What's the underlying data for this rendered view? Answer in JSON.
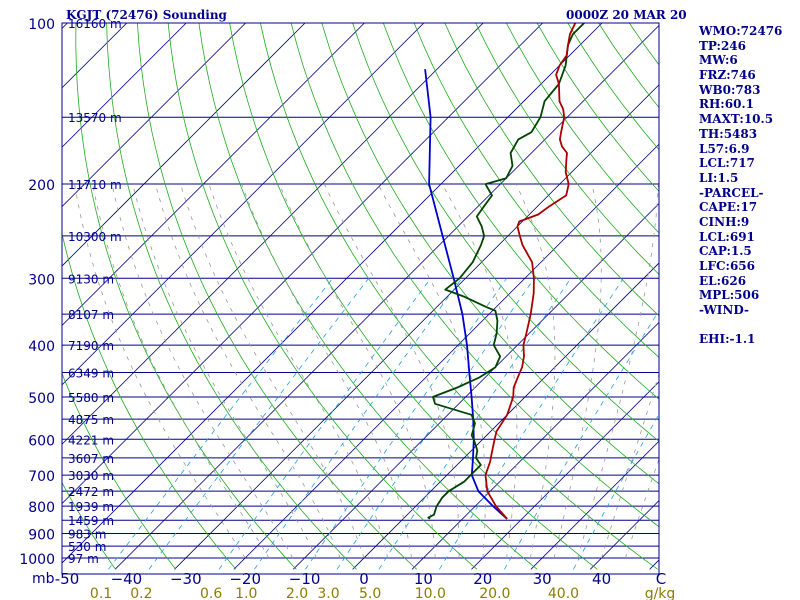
{
  "header": {
    "station": "KGJT (72476) Sounding",
    "time": "0000Z 20 MAR 20"
  },
  "stats": [
    "WMO:72476",
    "TP:246",
    "MW:6",
    "FRZ:746",
    "WB0:783",
    "RH:60.1",
    "MAXT:10.5",
    "TH:5483",
    "L57:6.9",
    "LCL:717",
    "LI:1.5",
    "-PARCEL-",
    "CAPE:17",
    "CINH:9",
    "LCL:691",
    "CAP:1.5",
    "LFC:656",
    "EL:626",
    "MPL:506",
    "-WIND-",
    "",
    "EHI:-1.1"
  ],
  "colors": {
    "isobar": "#00008b",
    "isotherm": "#00008b",
    "dry_adiabat": "#22aa22",
    "moist_adiabat": "#999999",
    "mixing_ratio": "#20a0e0",
    "temperature": "#aa0000",
    "dewpoint": "#004400",
    "parcel": "#0000cc",
    "mixing_labels": "#8b7d00"
  },
  "chart_data": {
    "type": "line",
    "diagram": "skew-T log-P",
    "pressure_levels": [
      {
        "p": 100,
        "label": "100"
      },
      {
        "p": 200,
        "label": "200"
      },
      {
        "p": 300,
        "label": "300"
      },
      {
        "p": 400,
        "label": "400"
      },
      {
        "p": 500,
        "label": "500"
      },
      {
        "p": 600,
        "label": "600"
      },
      {
        "p": 700,
        "label": "700"
      },
      {
        "p": 800,
        "label": "800"
      },
      {
        "p": 900,
        "label": "900"
      },
      {
        "p": 1000,
        "label": "1000"
      }
    ],
    "pressure_unit": "mb",
    "height_levels": [
      {
        "p": 100,
        "label": "16160 m"
      },
      {
        "p": 150,
        "label": "13570 m"
      },
      {
        "p": 200,
        "label": "11710 m"
      },
      {
        "p": 250,
        "label": "10300 m"
      },
      {
        "p": 300,
        "label": "9130 m"
      },
      {
        "p": 350,
        "label": "8107 m"
      },
      {
        "p": 400,
        "label": "7190 m"
      },
      {
        "p": 450,
        "label": "6349 m"
      },
      {
        "p": 500,
        "label": "5580 m"
      },
      {
        "p": 550,
        "label": "4875 m"
      },
      {
        "p": 600,
        "label": "4221 m"
      },
      {
        "p": 650,
        "label": "3607 m"
      },
      {
        "p": 700,
        "label": "3030 m"
      },
      {
        "p": 750,
        "label": "2472 m"
      },
      {
        "p": 800,
        "label": "1939 m"
      },
      {
        "p": 850,
        "label": "1459 m"
      },
      {
        "p": 900,
        "label": "983 m"
      },
      {
        "p": 950,
        "label": "530 m"
      },
      {
        "p": 1000,
        "label": "97 m"
      }
    ],
    "temperature_ticks": [
      {
        "t": -50,
        "label": "-50"
      },
      {
        "t": -40,
        "label": "−40"
      },
      {
        "t": -30,
        "label": "−30"
      },
      {
        "t": -20,
        "label": "−20"
      },
      {
        "t": -10,
        "label": "−10"
      },
      {
        "t": 0,
        "label": "0"
      },
      {
        "t": 10,
        "label": "10"
      },
      {
        "t": 20,
        "label": "20"
      },
      {
        "t": 30,
        "label": "30"
      },
      {
        "t": 40,
        "label": "40"
      },
      {
        "t": 50,
        "label": "C"
      }
    ],
    "mixing_ratio_ticks": [
      {
        "w": 0.1,
        "label": "0.1"
      },
      {
        "w": 0.2,
        "label": "0.2"
      },
      {
        "w": 0.6,
        "label": "0.6"
      },
      {
        "w": 1.0,
        "label": "1.0"
      },
      {
        "w": 2.0,
        "label": "2.0"
      },
      {
        "w": 3.0,
        "label": "3.0"
      },
      {
        "w": 5.0,
        "label": "5.0"
      },
      {
        "w": 10.0,
        "label": "10.0"
      },
      {
        "w": 20.0,
        "label": "20.0"
      },
      {
        "w": 40.0,
        "label": "40.0"
      },
      {
        "w": 0,
        "label": "g/kg"
      }
    ],
    "temperature_profile": [
      [
        845,
        17.5
      ],
      [
        800,
        13.5
      ],
      [
        750,
        9.5
      ],
      [
        700,
        6.5
      ],
      [
        660,
        5.0
      ],
      [
        640,
        4.0
      ],
      [
        600,
        2.0
      ],
      [
        580,
        1.0
      ],
      [
        560,
        0.5
      ],
      [
        540,
        0.0
      ],
      [
        500,
        -2.0
      ],
      [
        480,
        -3.5
      ],
      [
        460,
        -4.5
      ],
      [
        440,
        -5.5
      ],
      [
        420,
        -7.0
      ],
      [
        400,
        -9.0
      ],
      [
        380,
        -10.5
      ],
      [
        350,
        -13.0
      ],
      [
        320,
        -16.0
      ],
      [
        300,
        -18.5
      ],
      [
        280,
        -21.5
      ],
      [
        260,
        -26.0
      ],
      [
        250,
        -28.0
      ],
      [
        240,
        -30.0
      ],
      [
        235,
        -30.5
      ],
      [
        228,
        -28.5
      ],
      [
        220,
        -28.0
      ],
      [
        210,
        -27.0
      ],
      [
        200,
        -28.5
      ],
      [
        190,
        -31.0
      ],
      [
        180,
        -33.0
      ],
      [
        175,
        -34.0
      ],
      [
        170,
        -36.0
      ],
      [
        165,
        -37.5
      ],
      [
        160,
        -38.5
      ],
      [
        150,
        -40.5
      ],
      [
        145,
        -42.0
      ],
      [
        140,
        -44.0
      ],
      [
        130,
        -47.0
      ],
      [
        125,
        -49.0
      ],
      [
        120,
        -50.0
      ],
      [
        115,
        -50.5
      ],
      [
        110,
        -52.0
      ],
      [
        105,
        -53.5
      ],
      [
        100,
        -54.5
      ]
    ],
    "dewpoint_profile": [
      [
        845,
        4.5
      ],
      [
        840,
        4.0
      ],
      [
        830,
        4.5
      ],
      [
        800,
        3.5
      ],
      [
        770,
        3.0
      ],
      [
        750,
        3.0
      ],
      [
        720,
        4.0
      ],
      [
        700,
        4.0
      ],
      [
        670,
        4.0
      ],
      [
        650,
        2.0
      ],
      [
        630,
        1.0
      ],
      [
        600,
        -1.5
      ],
      [
        590,
        -2.5
      ],
      [
        560,
        -4.0
      ],
      [
        540,
        -6.0
      ],
      [
        515,
        -14.0
      ],
      [
        500,
        -15.5
      ],
      [
        480,
        -13.0
      ],
      [
        460,
        -11.0
      ],
      [
        440,
        -10.0
      ],
      [
        420,
        -11.0
      ],
      [
        400,
        -14.0
      ],
      [
        380,
        -15.5
      ],
      [
        360,
        -17.5
      ],
      [
        345,
        -19.5
      ],
      [
        340,
        -21.5
      ],
      [
        325,
        -27.0
      ],
      [
        315,
        -31.5
      ],
      [
        300,
        -31.0
      ],
      [
        280,
        -31.5
      ],
      [
        260,
        -33.0
      ],
      [
        250,
        -34.0
      ],
      [
        240,
        -36.0
      ],
      [
        230,
        -38.5
      ],
      [
        220,
        -39.0
      ],
      [
        210,
        -39.5
      ],
      [
        205,
        -41.0
      ],
      [
        200,
        -42.5
      ],
      [
        195,
        -40.0
      ],
      [
        185,
        -41.0
      ],
      [
        175,
        -43.5
      ],
      [
        165,
        -44.5
      ],
      [
        160,
        -43.5
      ],
      [
        150,
        -44.5
      ],
      [
        140,
        -46.5
      ],
      [
        130,
        -47.0
      ],
      [
        120,
        -49.0
      ],
      [
        110,
        -52.0
      ],
      [
        105,
        -53.0
      ],
      [
        100,
        -53.0
      ]
    ],
    "parcel_profile": [
      [
        845,
        17.5
      ],
      [
        800,
        13.0
      ],
      [
        750,
        8.0
      ],
      [
        700,
        4.2
      ],
      [
        650,
        1.5
      ],
      [
        600,
        -1.5
      ],
      [
        550,
        -5.0
      ],
      [
        500,
        -9.0
      ],
      [
        450,
        -13.5
      ],
      [
        400,
        -18.5
      ],
      [
        350,
        -24.5
      ],
      [
        300,
        -32.0
      ],
      [
        250,
        -41.0
      ],
      [
        200,
        -52.0
      ],
      [
        150,
        -63.0
      ],
      [
        122,
        -72.0
      ]
    ]
  }
}
